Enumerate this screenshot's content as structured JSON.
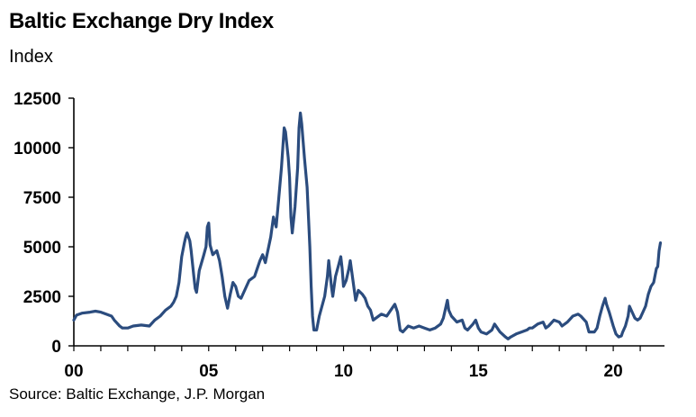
{
  "chart_data": {
    "type": "line",
    "title": "Baltic Exchange Dry Index",
    "ylabel": "Index",
    "xlabel": "",
    "source": "Source: Baltic Exchange, J.P. Morgan",
    "ylim": [
      0,
      12500
    ],
    "xlim": [
      2000,
      2021.9
    ],
    "y_ticks": [
      0,
      2500,
      5000,
      7500,
      10000,
      12500
    ],
    "y_tick_labels": [
      "0",
      "2500",
      "5000",
      "7500",
      "10000",
      "12500"
    ],
    "x_ticks": [
      2000,
      2005,
      2010,
      2015,
      2020
    ],
    "x_tick_labels": [
      "00",
      "05",
      "10",
      "15",
      "20"
    ],
    "grid": false,
    "legend": "none",
    "series": [
      {
        "color": "#2b4c7e",
        "points": [
          [
            2000.0,
            1300
          ],
          [
            2000.1,
            1550
          ],
          [
            2000.3,
            1650
          ],
          [
            2000.6,
            1700
          ],
          [
            2000.8,
            1750
          ],
          [
            2001.0,
            1700
          ],
          [
            2001.2,
            1600
          ],
          [
            2001.4,
            1500
          ],
          [
            2001.5,
            1300
          ],
          [
            2001.7,
            1000
          ],
          [
            2001.8,
            900
          ],
          [
            2002.0,
            900
          ],
          [
            2002.2,
            1000
          ],
          [
            2002.5,
            1050
          ],
          [
            2002.8,
            1000
          ],
          [
            2003.0,
            1300
          ],
          [
            2003.2,
            1500
          ],
          [
            2003.4,
            1800
          ],
          [
            2003.6,
            2000
          ],
          [
            2003.7,
            2200
          ],
          [
            2003.8,
            2500
          ],
          [
            2003.9,
            3200
          ],
          [
            2004.0,
            4500
          ],
          [
            2004.1,
            5200
          ],
          [
            2004.15,
            5500
          ],
          [
            2004.2,
            5700
          ],
          [
            2004.3,
            5300
          ],
          [
            2004.35,
            4800
          ],
          [
            2004.45,
            3500
          ],
          [
            2004.5,
            2900
          ],
          [
            2004.55,
            2700
          ],
          [
            2004.65,
            3800
          ],
          [
            2004.8,
            4500
          ],
          [
            2004.9,
            5000
          ],
          [
            2004.95,
            6000
          ],
          [
            2005.0,
            6200
          ],
          [
            2005.05,
            5100
          ],
          [
            2005.15,
            4600
          ],
          [
            2005.3,
            4800
          ],
          [
            2005.4,
            4300
          ],
          [
            2005.5,
            3500
          ],
          [
            2005.6,
            2500
          ],
          [
            2005.7,
            1900
          ],
          [
            2005.8,
            2600
          ],
          [
            2005.9,
            3200
          ],
          [
            2006.0,
            3000
          ],
          [
            2006.1,
            2500
          ],
          [
            2006.2,
            2400
          ],
          [
            2006.3,
            2700
          ],
          [
            2006.5,
            3300
          ],
          [
            2006.7,
            3500
          ],
          [
            2006.8,
            3900
          ],
          [
            2006.9,
            4300
          ],
          [
            2007.0,
            4600
          ],
          [
            2007.1,
            4200
          ],
          [
            2007.3,
            5500
          ],
          [
            2007.4,
            6500
          ],
          [
            2007.5,
            6000
          ],
          [
            2007.6,
            7500
          ],
          [
            2007.7,
            9000
          ],
          [
            2007.8,
            11000
          ],
          [
            2007.85,
            10800
          ],
          [
            2007.95,
            9500
          ],
          [
            2008.0,
            8500
          ],
          [
            2008.05,
            6500
          ],
          [
            2008.1,
            5700
          ],
          [
            2008.2,
            7000
          ],
          [
            2008.3,
            9000
          ],
          [
            2008.35,
            11000
          ],
          [
            2008.4,
            11750
          ],
          [
            2008.45,
            11200
          ],
          [
            2008.55,
            9500
          ],
          [
            2008.65,
            8000
          ],
          [
            2008.75,
            5000
          ],
          [
            2008.8,
            3000
          ],
          [
            2008.85,
            1500
          ],
          [
            2008.9,
            800
          ],
          [
            2009.0,
            800
          ],
          [
            2009.1,
            1500
          ],
          [
            2009.2,
            2000
          ],
          [
            2009.3,
            2500
          ],
          [
            2009.4,
            3500
          ],
          [
            2009.45,
            4300
          ],
          [
            2009.55,
            3000
          ],
          [
            2009.6,
            2500
          ],
          [
            2009.7,
            3500
          ],
          [
            2009.8,
            4000
          ],
          [
            2009.9,
            4500
          ],
          [
            2009.95,
            3900
          ],
          [
            2010.0,
            3000
          ],
          [
            2010.1,
            3300
          ],
          [
            2010.2,
            3900
          ],
          [
            2010.25,
            4300
          ],
          [
            2010.35,
            3300
          ],
          [
            2010.45,
            2300
          ],
          [
            2010.55,
            2800
          ],
          [
            2010.7,
            2600
          ],
          [
            2010.8,
            2400
          ],
          [
            2010.9,
            2000
          ],
          [
            2011.0,
            1800
          ],
          [
            2011.1,
            1300
          ],
          [
            2011.2,
            1400
          ],
          [
            2011.4,
            1600
          ],
          [
            2011.6,
            1500
          ],
          [
            2011.8,
            1900
          ],
          [
            2011.9,
            2100
          ],
          [
            2012.0,
            1700
          ],
          [
            2012.1,
            800
          ],
          [
            2012.2,
            700
          ],
          [
            2012.4,
            1000
          ],
          [
            2012.6,
            900
          ],
          [
            2012.8,
            1000
          ],
          [
            2013.0,
            900
          ],
          [
            2013.2,
            800
          ],
          [
            2013.4,
            900
          ],
          [
            2013.6,
            1100
          ],
          [
            2013.7,
            1400
          ],
          [
            2013.8,
            2000
          ],
          [
            2013.85,
            2300
          ],
          [
            2013.9,
            1800
          ],
          [
            2014.0,
            1500
          ],
          [
            2014.2,
            1200
          ],
          [
            2014.4,
            1300
          ],
          [
            2014.5,
            900
          ],
          [
            2014.6,
            800
          ],
          [
            2014.8,
            1100
          ],
          [
            2014.9,
            1300
          ],
          [
            2015.0,
            900
          ],
          [
            2015.1,
            700
          ],
          [
            2015.3,
            600
          ],
          [
            2015.5,
            800
          ],
          [
            2015.6,
            1100
          ],
          [
            2015.7,
            900
          ],
          [
            2015.8,
            700
          ],
          [
            2016.0,
            450
          ],
          [
            2016.1,
            350
          ],
          [
            2016.2,
            450
          ],
          [
            2016.4,
            600
          ],
          [
            2016.6,
            700
          ],
          [
            2016.8,
            800
          ],
          [
            2016.9,
            900
          ],
          [
            2017.0,
            900
          ],
          [
            2017.2,
            1100
          ],
          [
            2017.4,
            1200
          ],
          [
            2017.5,
            900
          ],
          [
            2017.6,
            1000
          ],
          [
            2017.8,
            1300
          ],
          [
            2018.0,
            1200
          ],
          [
            2018.1,
            1000
          ],
          [
            2018.3,
            1200
          ],
          [
            2018.5,
            1500
          ],
          [
            2018.7,
            1600
          ],
          [
            2018.8,
            1500
          ],
          [
            2019.0,
            1200
          ],
          [
            2019.1,
            700
          ],
          [
            2019.3,
            700
          ],
          [
            2019.4,
            900
          ],
          [
            2019.5,
            1500
          ],
          [
            2019.6,
            2000
          ],
          [
            2019.7,
            2400
          ],
          [
            2019.75,
            2100
          ],
          [
            2019.85,
            1700
          ],
          [
            2020.0,
            1000
          ],
          [
            2020.1,
            600
          ],
          [
            2020.2,
            450
          ],
          [
            2020.3,
            500
          ],
          [
            2020.35,
            700
          ],
          [
            2020.45,
            1000
          ],
          [
            2020.55,
            1500
          ],
          [
            2020.6,
            2000
          ],
          [
            2020.7,
            1700
          ],
          [
            2020.8,
            1400
          ],
          [
            2020.9,
            1300
          ],
          [
            2021.0,
            1400
          ],
          [
            2021.1,
            1700
          ],
          [
            2021.2,
            2000
          ],
          [
            2021.3,
            2600
          ],
          [
            2021.4,
            3000
          ],
          [
            2021.5,
            3200
          ],
          [
            2021.6,
            3900
          ],
          [
            2021.65,
            4000
          ],
          [
            2021.7,
            4800
          ],
          [
            2021.75,
            5200
          ]
        ]
      }
    ]
  }
}
